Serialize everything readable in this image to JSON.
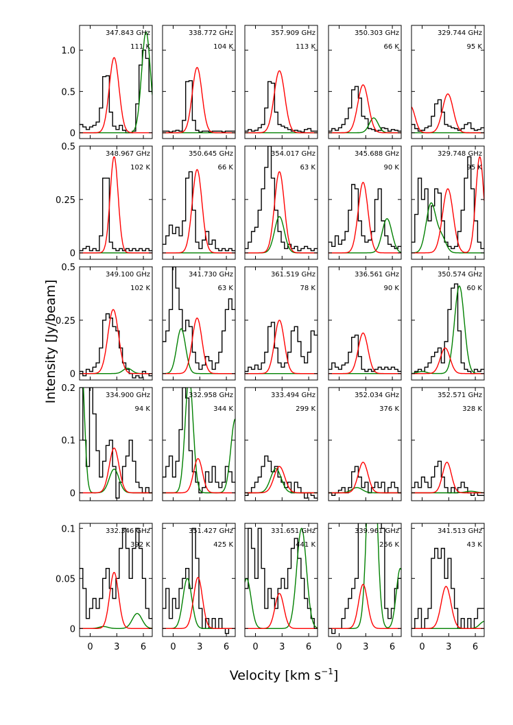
{
  "figure": {
    "xlabel": "Velocity [km s",
    "xlabel_sup": "−1",
    "xlabel_close": "]",
    "ylabel": "Intensity [Jy/beam]"
  },
  "chart_data": {
    "type": "line",
    "x_range": [
      -1.2,
      7.0
    ],
    "x_ticks": [
      0,
      3,
      6
    ],
    "colors": {
      "observed": "#000000",
      "model": "#ff0000",
      "other": "#008000"
    },
    "rows": [
      {
        "ylim": [
          -0.07,
          1.3
        ],
        "y_ticks": [
          0,
          0.5,
          1.0
        ],
        "y_tick_labels": [
          "0",
          "0.5",
          "1.0"
        ]
      },
      {
        "ylim": [
          -0.03,
          0.5
        ],
        "y_ticks": [
          0,
          0.25,
          0.5
        ],
        "y_tick_labels": [
          "0",
          "0.25",
          "0.5"
        ]
      },
      {
        "ylim": [
          -0.03,
          0.5
        ],
        "y_ticks": [
          0,
          0.25,
          0.5
        ],
        "y_tick_labels": [
          "0",
          "0.25",
          "0.5"
        ]
      },
      {
        "ylim": [
          -0.015,
          0.2
        ],
        "y_ticks": [
          0,
          0.1,
          0.2
        ],
        "y_tick_labels": [
          "0",
          "0.1",
          "0.2"
        ]
      },
      {
        "ylim": [
          -0.008,
          0.105
        ],
        "y_ticks": [
          0,
          0.05,
          0.1
        ],
        "y_tick_labels": [
          "0",
          "0.05",
          "0.1"
        ]
      }
    ],
    "panels": [
      {
        "row": 0,
        "col": 0,
        "freq": "347.843 GHz",
        "temp": "111 K",
        "red": [
          {
            "a": 0.91,
            "c": 2.7,
            "s": 0.55
          }
        ],
        "green": [
          {
            "a": 1.22,
            "c": 6.3,
            "s": 0.5
          }
        ],
        "obs": [
          0.1,
          0.07,
          0.04,
          0.07,
          0.09,
          0.13,
          0.3,
          0.68,
          0.69,
          0.25,
          0.08,
          0.04,
          0.09,
          0.03,
          0.0,
          0.0,
          0.02,
          0.35,
          0.82,
          1.0,
          0.9,
          0.5
        ]
      },
      {
        "row": 0,
        "col": 1,
        "freq": "338.772 GHz",
        "temp": "104 K",
        "red": [
          {
            "a": 0.79,
            "c": 2.7,
            "s": 0.55
          }
        ],
        "green": [],
        "obs": [
          0.02,
          0.02,
          0.01,
          0.02,
          0.03,
          0.02,
          0.15,
          0.62,
          0.63,
          0.15,
          0.03,
          0.01,
          0.02,
          0.02,
          0.01,
          0.02,
          0.02,
          0.02,
          0.01,
          0.02,
          0.02,
          0.02
        ]
      },
      {
        "row": 0,
        "col": 2,
        "freq": "357.909 GHz",
        "temp": "113 K",
        "red": [
          {
            "a": 0.75,
            "c": 2.7,
            "s": 0.6
          }
        ],
        "green": [],
        "obs": [
          0.02,
          0.04,
          0.02,
          0.03,
          0.06,
          0.1,
          0.3,
          0.62,
          0.6,
          0.25,
          0.1,
          0.08,
          0.06,
          0.04,
          0.02,
          0.03,
          0.02,
          0.01,
          0.04,
          0.05,
          0.02,
          0.02
        ]
      },
      {
        "row": 0,
        "col": 3,
        "freq": "350.303 GHz",
        "temp": "66 K",
        "red": [
          {
            "a": 0.58,
            "c": 2.7,
            "s": 0.6
          }
        ],
        "green": [
          {
            "a": 0.18,
            "c": 3.9,
            "s": 0.5
          }
        ],
        "obs": [
          0.02,
          0.05,
          0.03,
          0.06,
          0.1,
          0.17,
          0.3,
          0.52,
          0.56,
          0.42,
          0.2,
          0.17,
          0.05,
          0.04,
          0.02,
          0.03,
          0.06,
          0.05,
          0.02,
          0.04,
          0.03,
          0.02
        ]
      },
      {
        "row": 0,
        "col": 4,
        "freq": "329.744 GHz",
        "temp": "95 K",
        "red": [
          {
            "a": 0.47,
            "c": 2.9,
            "s": 0.6
          },
          {
            "a": 0.32,
            "c": -1.3,
            "s": 0.5
          }
        ],
        "green": [],
        "obs": [
          0.1,
          0.05,
          0.02,
          0.03,
          0.06,
          0.08,
          0.2,
          0.35,
          0.4,
          0.25,
          0.1,
          0.08,
          0.06,
          0.05,
          0.03,
          0.05,
          0.1,
          0.12,
          0.05,
          0.03,
          0.04,
          0.06
        ]
      },
      {
        "row": 1,
        "col": 0,
        "freq": "348.967 GHz",
        "temp": "102 K",
        "red": [
          {
            "a": 0.45,
            "c": 2.7,
            "s": 0.45
          }
        ],
        "green": [],
        "obs": [
          0.01,
          0.02,
          0.03,
          0.01,
          0.02,
          0.01,
          0.08,
          0.35,
          0.35,
          0.05,
          0.02,
          0.01,
          0.02,
          0.01,
          0.02,
          0.01,
          0.02,
          0.01,
          0.02,
          0.01,
          0.02,
          0.01
        ]
      },
      {
        "row": 1,
        "col": 1,
        "freq": "350.645 GHz",
        "temp": "66 K",
        "red": [
          {
            "a": 0.39,
            "c": 2.7,
            "s": 0.55
          }
        ],
        "green": [],
        "obs": [
          0.04,
          0.08,
          0.13,
          0.09,
          0.12,
          0.08,
          0.15,
          0.35,
          0.38,
          0.2,
          0.05,
          0.02,
          0.06,
          0.1,
          0.04,
          0.06,
          0.02,
          0.01,
          0.02,
          0.01,
          0.02,
          0.01
        ]
      },
      {
        "row": 1,
        "col": 2,
        "freq": "354.017 GHz",
        "temp": "63 K",
        "red": [
          {
            "a": 0.38,
            "c": 2.7,
            "s": 0.55
          }
        ],
        "green": [
          {
            "a": 0.17,
            "c": 2.7,
            "s": 0.55
          }
        ],
        "obs": [
          0.02,
          0.05,
          0.1,
          0.12,
          0.2,
          0.3,
          0.4,
          0.5,
          0.35,
          0.2,
          0.1,
          0.05,
          0.02,
          0.04,
          0.02,
          0.03,
          0.01,
          0.02,
          0.03,
          0.02,
          0.01,
          0.02
        ]
      },
      {
        "row": 1,
        "col": 3,
        "freq": "345.688 GHz",
        "temp": "90 K",
        "red": [
          {
            "a": 0.33,
            "c": 2.7,
            "s": 0.55
          }
        ],
        "green": [
          {
            "a": 0.16,
            "c": 5.4,
            "s": 0.55
          }
        ],
        "obs": [
          0.05,
          0.03,
          0.08,
          0.04,
          0.06,
          0.1,
          0.2,
          0.32,
          0.3,
          0.15,
          0.08,
          0.05,
          0.06,
          0.1,
          0.25,
          0.3,
          0.15,
          0.08,
          0.04,
          0.03,
          0.02,
          0.03
        ]
      },
      {
        "row": 1,
        "col": 4,
        "freq": "329.748 GHz",
        "temp": "95 K",
        "red": [
          {
            "a": 0.3,
            "c": 2.9,
            "s": 0.6
          },
          {
            "a": 0.45,
            "c": 6.5,
            "s": 0.45
          }
        ],
        "green": [
          {
            "a": 0.23,
            "c": 1.0,
            "s": 0.55
          },
          {
            "a": 0.07,
            "c": 2.2,
            "s": 0.5
          }
        ],
        "obs": [
          0.05,
          0.18,
          0.35,
          0.25,
          0.3,
          0.15,
          0.22,
          0.3,
          0.28,
          0.15,
          0.05,
          0.03,
          0.02,
          0.03,
          0.1,
          0.2,
          0.35,
          0.45,
          0.3,
          0.15,
          0.05,
          0.02
        ]
      },
      {
        "row": 2,
        "col": 0,
        "freq": "349.100 GHz",
        "temp": "102 K",
        "red": [
          {
            "a": 0.3,
            "c": 2.6,
            "s": 0.6
          }
        ],
        "green": [
          {
            "a": 0.025,
            "c": 4.2,
            "s": 0.5
          }
        ],
        "obs": [
          0.01,
          -0.01,
          0.02,
          0.01,
          0.03,
          0.05,
          0.12,
          0.25,
          0.28,
          0.26,
          0.22,
          0.2,
          0.12,
          0.05,
          0.02,
          0.0,
          -0.02,
          -0.01,
          -0.02,
          0.01,
          0.0,
          -0.01
        ]
      },
      {
        "row": 2,
        "col": 1,
        "freq": "341.730 GHz",
        "temp": "63 K",
        "red": [
          {
            "a": 0.26,
            "c": 2.7,
            "s": 0.55
          }
        ],
        "green": [
          {
            "a": 0.21,
            "c": 0.9,
            "s": 0.5
          }
        ],
        "obs": [
          0.15,
          0.2,
          0.3,
          0.5,
          0.4,
          0.3,
          0.2,
          0.25,
          0.22,
          0.1,
          0.05,
          0.02,
          0.04,
          0.08,
          0.06,
          0.02,
          0.05,
          0.1,
          0.2,
          0.3,
          0.35,
          0.3
        ]
      },
      {
        "row": 2,
        "col": 2,
        "freq": "361.519 GHz",
        "temp": "78 K",
        "red": [
          {
            "a": 0.25,
            "c": 2.7,
            "s": 0.55
          }
        ],
        "green": [],
        "obs": [
          0.01,
          0.03,
          0.02,
          0.04,
          0.02,
          0.05,
          0.1,
          0.22,
          0.24,
          0.12,
          0.05,
          0.03,
          0.05,
          0.1,
          0.2,
          0.22,
          0.15,
          0.08,
          0.05,
          0.1,
          0.2,
          0.18
        ]
      },
      {
        "row": 2,
        "col": 3,
        "freq": "336.561 GHz",
        "temp": "90 K",
        "red": [
          {
            "a": 0.19,
            "c": 2.7,
            "s": 0.55
          }
        ],
        "green": [],
        "obs": [
          0.02,
          0.05,
          0.03,
          0.02,
          0.04,
          0.05,
          0.1,
          0.17,
          0.18,
          0.08,
          0.02,
          0.01,
          0.02,
          0.01,
          0.02,
          0.03,
          0.02,
          0.03,
          0.02,
          0.03,
          0.02,
          0.01
        ]
      },
      {
        "row": 2,
        "col": 4,
        "freq": "350.574 GHz",
        "temp": "60 K",
        "red": [
          {
            "a": 0.12,
            "c": 2.6,
            "s": 0.55
          }
        ],
        "green": [
          {
            "a": 0.41,
            "c": 4.2,
            "s": 0.55
          },
          {
            "a": 0.01,
            "c": 0.0,
            "s": 0.5
          }
        ],
        "obs": [
          0.0,
          0.01,
          0.02,
          0.01,
          0.03,
          0.05,
          0.08,
          0.1,
          0.12,
          0.05,
          0.15,
          0.3,
          0.4,
          0.42,
          0.2,
          0.05,
          0.02,
          0.01,
          0.0,
          0.02,
          0.01,
          0.02
        ]
      },
      {
        "row": 3,
        "col": 0,
        "freq": "334.900 GHz",
        "temp": "94 K",
        "red": [
          {
            "a": 0.085,
            "c": 2.7,
            "s": 0.55
          }
        ],
        "green": [
          {
            "a": 0.045,
            "c": 2.7,
            "s": 0.55
          },
          {
            "a": 0.25,
            "c": -1.0,
            "s": 0.35
          }
        ],
        "obs": [
          0.2,
          0.1,
          0.05,
          0.2,
          0.15,
          0.08,
          0.03,
          0.06,
          0.09,
          0.1,
          0.05,
          -0.01,
          0.02,
          0.05,
          0.07,
          0.1,
          0.06,
          0.02,
          0.01,
          0.0,
          0.01,
          0.0
        ]
      },
      {
        "row": 3,
        "col": 1,
        "freq": "332.958 GHz",
        "temp": "344 K",
        "red": [
          {
            "a": 0.065,
            "c": 2.8,
            "s": 0.5
          }
        ],
        "green": [
          {
            "a": 0.22,
            "c": 1.8,
            "s": 0.45
          },
          {
            "a": 0.14,
            "c": 7.0,
            "s": 0.5
          }
        ],
        "obs": [
          0.03,
          0.05,
          0.07,
          0.03,
          0.06,
          0.12,
          0.2,
          0.18,
          0.08,
          0.04,
          0.02,
          0.0,
          0.01,
          0.04,
          0.02,
          0.05,
          0.02,
          0.01,
          0.02,
          0.05,
          0.04,
          0.02
        ]
      },
      {
        "row": 3,
        "col": 2,
        "freq": "333.494 GHz",
        "temp": "299 K",
        "red": [
          {
            "a": 0.05,
            "c": 2.7,
            "s": 0.6
          }
        ],
        "green": [
          {
            "a": 0.046,
            "c": 2.3,
            "s": 0.6
          }
        ],
        "obs": [
          -0.005,
          0.0,
          0.01,
          0.02,
          0.03,
          0.05,
          0.07,
          0.06,
          0.04,
          0.05,
          0.03,
          0.02,
          0.01,
          0.02,
          0.0,
          0.02,
          0.01,
          0.0,
          -0.01,
          0.0,
          -0.005,
          -0.01
        ]
      },
      {
        "row": 3,
        "col": 3,
        "freq": "352.034 GHz",
        "temp": "376 K",
        "red": [
          {
            "a": 0.058,
            "c": 2.7,
            "s": 0.55
          }
        ],
        "green": [
          {
            "a": 0.01,
            "c": 2.0,
            "s": 0.6
          }
        ],
        "obs": [
          0.0,
          -0.005,
          0.0,
          0.005,
          0.01,
          0.0,
          0.01,
          0.04,
          0.05,
          0.03,
          0.01,
          0.02,
          0.0,
          0.01,
          0.02,
          0.01,
          0.02,
          0.0,
          0.01,
          0.02,
          0.01,
          0.0
        ]
      },
      {
        "row": 3,
        "col": 4,
        "freq": "352.571 GHz",
        "temp": "328 K",
        "red": [
          {
            "a": 0.058,
            "c": 2.8,
            "s": 0.5
          }
        ],
        "green": [
          {
            "a": 0.003,
            "c": 5.5,
            "s": 0.6
          }
        ],
        "obs": [
          0.01,
          0.02,
          0.01,
          0.03,
          0.02,
          0.01,
          0.03,
          0.05,
          0.06,
          0.03,
          0.01,
          0.0,
          0.01,
          0.0,
          0.01,
          0.02,
          0.01,
          0.0,
          -0.005,
          0.0,
          -0.005,
          -0.005
        ]
      },
      {
        "row": 4,
        "col": 0,
        "freq": "332.346 GHz",
        "temp": "392 K",
        "red": [
          {
            "a": 0.056,
            "c": 2.7,
            "s": 0.5
          }
        ],
        "green": [
          {
            "a": 0.015,
            "c": 5.3,
            "s": 0.55
          },
          {
            "a": 0.002,
            "c": 1.5,
            "s": 0.5
          }
        ],
        "obs": [
          0.06,
          0.04,
          0.01,
          0.02,
          0.03,
          0.02,
          0.03,
          0.05,
          0.06,
          0.04,
          0.03,
          0.05,
          0.08,
          0.1,
          0.08,
          0.05,
          0.08,
          0.1,
          0.08,
          0.05,
          0.02,
          0.01
        ]
      },
      {
        "row": 4,
        "col": 1,
        "freq": "351.427 GHz",
        "temp": "425 K",
        "red": [
          {
            "a": 0.051,
            "c": 2.8,
            "s": 0.5
          }
        ],
        "green": [
          {
            "a": 0.05,
            "c": 1.6,
            "s": 0.5
          }
        ],
        "obs": [
          0.02,
          0.04,
          0.01,
          0.03,
          0.02,
          0.04,
          0.05,
          0.06,
          0.04,
          0.1,
          0.07,
          0.02,
          0.0,
          0.01,
          0.0,
          0.01,
          0.0,
          0.01,
          0.0,
          -0.005,
          0.0,
          0.0
        ]
      },
      {
        "row": 4,
        "col": 2,
        "freq": "331.651 GHz",
        "temp": "441 K",
        "red": [
          {
            "a": 0.035,
            "c": 2.7,
            "s": 0.5
          }
        ],
        "green": [
          {
            "a": 0.1,
            "c": 5.2,
            "s": 0.55
          },
          {
            "a": 0.05,
            "c": -1.0,
            "s": 0.5
          }
        ],
        "obs": [
          0.04,
          0.1,
          0.08,
          0.05,
          0.1,
          0.06,
          0.02,
          0.04,
          0.03,
          0.02,
          0.04,
          0.05,
          0.04,
          0.06,
          0.08,
          0.09,
          0.07,
          0.05,
          0.03,
          0.02,
          0.01,
          0.0
        ]
      },
      {
        "row": 4,
        "col": 3,
        "freq": "339.961 GHz",
        "temp": "256 K",
        "red": [
          {
            "a": 0.044,
            "c": 2.7,
            "s": 0.5
          }
        ],
        "green": [
          {
            "a": 0.23,
            "c": 3.7,
            "s": 0.5
          },
          {
            "a": 0.06,
            "c": 6.9,
            "s": 0.45
          }
        ],
        "obs": [
          0.0,
          -0.005,
          0.0,
          0.0,
          0.01,
          0.02,
          0.03,
          0.04,
          0.05,
          0.12,
          0.15,
          0.13,
          0.12,
          0.11,
          0.13,
          0.12,
          0.1,
          0.02,
          0.01,
          0.02,
          0.04,
          0.05
        ]
      },
      {
        "row": 4,
        "col": 4,
        "freq": "341.513 GHz",
        "temp": "43 K",
        "red": [
          {
            "a": 0.042,
            "c": 2.7,
            "s": 0.55
          }
        ],
        "green": [
          {
            "a": 0.007,
            "c": 7.0,
            "s": 0.5
          }
        ],
        "obs": [
          0.0,
          0.01,
          0.02,
          0.0,
          0.01,
          0.02,
          0.07,
          0.08,
          0.07,
          0.08,
          0.05,
          0.07,
          0.04,
          0.02,
          0.0,
          0.01,
          0.0,
          0.01,
          0.0,
          0.01,
          0.02,
          0.02
        ]
      }
    ]
  }
}
